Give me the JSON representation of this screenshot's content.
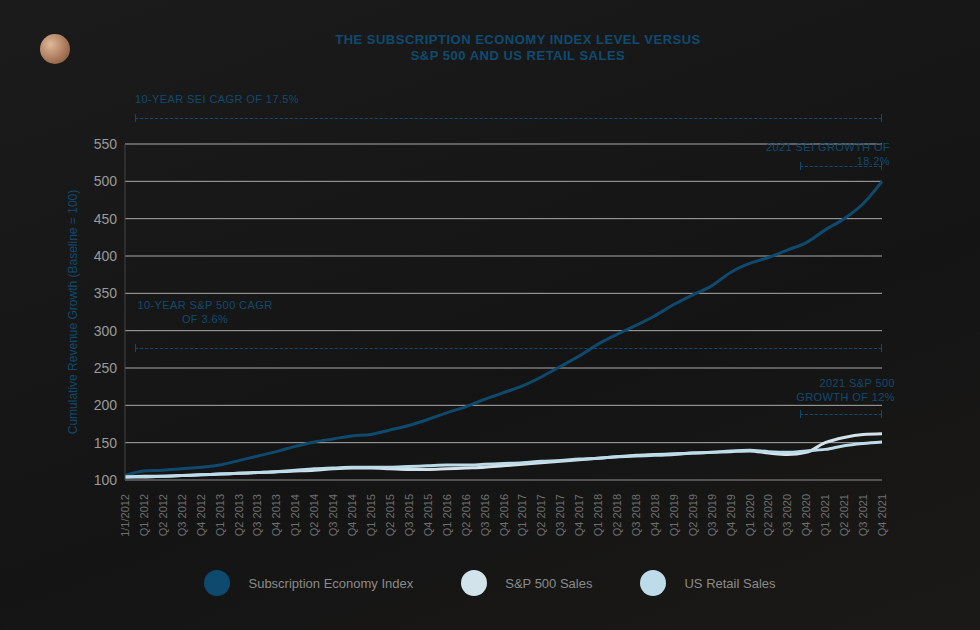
{
  "chart_data": {
    "type": "line",
    "title": "THE SUBSCRIPTION ECONOMY INDEX LEVEL VERSUS S&P 500 AND US RETAIL SALES",
    "y_label": "Cumulative Revenue Growth (Baseline = 100)",
    "categories": [
      "1/1/2012",
      "Q1 2012",
      "Q2 2012",
      "Q3 2012",
      "Q4 2012",
      "Q1 2013",
      "Q2 2013",
      "Q3 2013",
      "Q4 2013",
      "Q1 2014",
      "Q2 2014",
      "Q3 2014",
      "Q4 2014",
      "Q1 2015",
      "Q2 2015",
      "Q3 2015",
      "Q4 2015",
      "Q1 2016",
      "Q2 2016",
      "Q3 2016",
      "Q4 2016",
      "Q1 2017",
      "Q2 2017",
      "Q3 2017",
      "Q4 2017",
      "Q1 2018",
      "Q2 2018",
      "Q3 2018",
      "Q4 2018",
      "Q1 2019",
      "Q2 2019",
      "Q3 2019",
      "Q4 2019",
      "Q1 2020",
      "Q2 2020",
      "Q3 2020",
      "Q4 2020",
      "Q1 2021",
      "Q2 2021",
      "Q3 2021",
      "Q4 2021"
    ],
    "series": [
      {
        "name": "Subscription Economy Index",
        "color": "#0e4a6e",
        "values": [
          106,
          112,
          113,
          115,
          117,
          120,
          126,
          132,
          138,
          145,
          151,
          155,
          159,
          161,
          167,
          173,
          181,
          190,
          198,
          208,
          217,
          226,
          238,
          252,
          266,
          282,
          295,
          307,
          320,
          335,
          348,
          360,
          378,
          390,
          398,
          408,
          418,
          435,
          450,
          470,
          500
        ]
      },
      {
        "name": "S&P 500 Sales",
        "color": "#d3e3ec",
        "values": [
          104,
          105,
          105,
          106,
          107,
          108,
          109,
          110,
          111,
          112,
          113,
          115,
          116,
          116,
          115,
          114,
          114,
          115,
          116,
          117,
          119,
          121,
          123,
          125,
          127,
          129,
          131,
          133,
          134,
          135,
          136,
          137,
          138,
          139,
          136,
          134,
          137,
          150,
          157,
          161,
          162
        ]
      },
      {
        "name": "US Retail Sales",
        "color": "#bcdcea",
        "values": [
          104,
          104,
          105,
          106,
          107,
          108,
          109,
          110,
          111,
          113,
          115,
          116,
          117,
          117,
          117,
          118,
          119,
          120,
          120,
          121,
          122,
          123,
          125,
          126,
          128,
          129,
          131,
          132,
          133,
          134,
          136,
          137,
          139,
          140,
          138,
          137,
          139,
          141,
          146,
          149,
          151
        ]
      }
    ],
    "ylim": [
      100,
      550
    ],
    "yticks": [
      100,
      150,
      200,
      250,
      300,
      350,
      400,
      450,
      500,
      550
    ],
    "grid": true,
    "legend": "bottom",
    "annotations": [
      "10-YEAR SEI CAGR OF 17.5%",
      "2021 SEI GROWTH OF 18.2%",
      "10-YEAR S&P 500 CAGR OF 3.6%",
      "2021 S&P 500 GROWTH OF 12%"
    ]
  }
}
